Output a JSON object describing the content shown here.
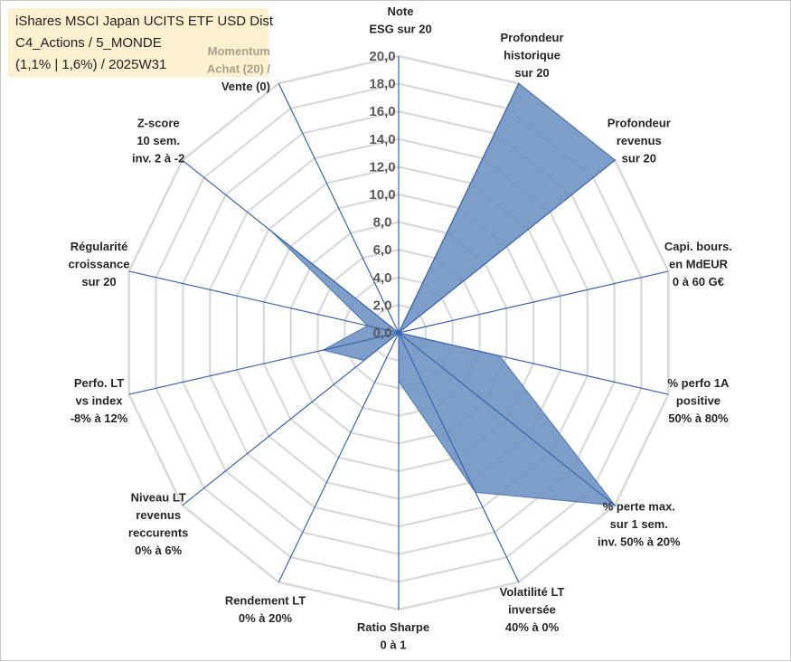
{
  "header": {
    "line1": "iShares MSCI Japan UCITS ETF USD Dist",
    "line2": "C4_Actions / 5_MONDE",
    "line3": "(1,1% | 1,6%) / 2025W31"
  },
  "colors": {
    "fill": "#7094c4",
    "stroke": "#4a72b0",
    "spoke": "#3a64ad",
    "grid": "#d9d9d9",
    "title_bg": "#fdf0cf"
  },
  "chart_data": {
    "type": "radar",
    "rmin": 0,
    "rmax": 20,
    "tick_step": 2,
    "tick_labels": [
      "0,0",
      "2,0",
      "4,0",
      "6,0",
      "8,0",
      "10,0",
      "12,0",
      "14,0",
      "16,0",
      "18,0",
      "20,0"
    ],
    "grid": true,
    "axes": [
      {
        "label": [
          "Note",
          "ESG sur 20"
        ],
        "value": 0
      },
      {
        "label": [
          "Profondeur",
          "historique",
          "sur 20"
        ],
        "value": 20
      },
      {
        "label": [
          "Profondeur",
          "revenus",
          "sur 20"
        ],
        "value": 20
      },
      {
        "label": [
          "Capi. bours.",
          "en MdEUR",
          "0 à 60 G€"
        ],
        "value": 0
      },
      {
        "label": [
          "% perfo 1A",
          "positive",
          "50% à 80%"
        ],
        "value": 7.5
      },
      {
        "label": [
          "% perte max.",
          "sur 1 sem.",
          "inv. 50% à 20%"
        ],
        "value": 20
      },
      {
        "label": [
          "Volatilité LT",
          "inversée",
          "40% à 0%"
        ],
        "value": 12.8
      },
      {
        "label": [
          "Ratio Sharpe",
          "0 à 1"
        ],
        "value": 3.5
      },
      {
        "label": [
          "Rendement LT",
          "0% à 20%"
        ],
        "value": 0
      },
      {
        "label": [
          "Niveau LT",
          "revenus",
          "reccurents",
          "0% à 6%"
        ],
        "value": 3.2
      },
      {
        "label": [
          "Perfo. LT",
          "vs index",
          "-8% à 12%"
        ],
        "value": 5.6
      },
      {
        "label": [
          "Régularité",
          "croissance",
          "sur 20"
        ],
        "value": 2.3
      },
      {
        "label": [
          "Z-score",
          "10 sem.",
          "inv. 2 à -2"
        ],
        "value": 11.8
      },
      {
        "label": [
          "Momentum",
          "Achat (20) /",
          "Vente (0)"
        ],
        "value": 0
      }
    ]
  }
}
